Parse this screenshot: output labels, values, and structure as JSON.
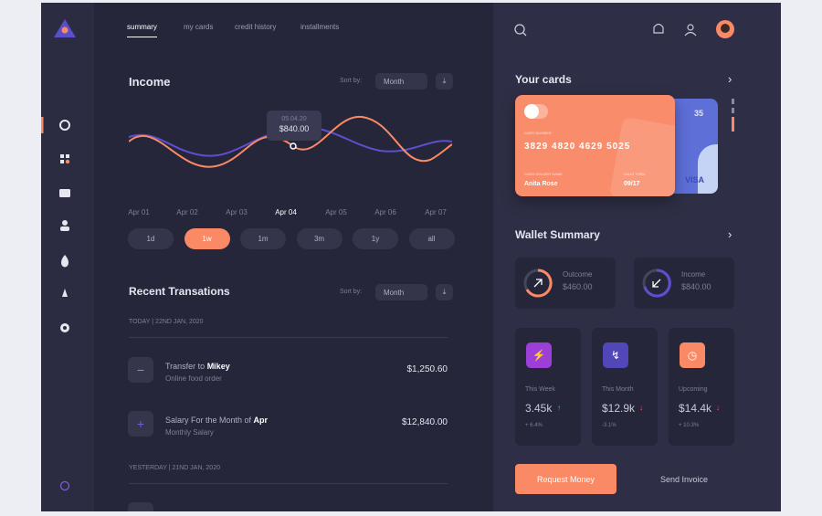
{
  "nav": {
    "tabs": [
      "summary",
      "my cards",
      "credit history",
      "installments"
    ],
    "active": 0
  },
  "income": {
    "title": "Income",
    "sort_label": "Sort by:",
    "sort_value": "Month",
    "tooltip": {
      "date": "05.04.20",
      "value": "$840.00"
    },
    "x_labels": [
      "Apr 01",
      "Apr 02",
      "Apr 03",
      "Apr 04",
      "Apr 05",
      "Apr 06",
      "Apr 07"
    ],
    "highlight": 3,
    "ranges": [
      "1d",
      "1w",
      "1m",
      "3m",
      "1y",
      "all"
    ],
    "active_range": 1
  },
  "transactions": {
    "title": "Recent Transations",
    "sort_label": "Sort by:",
    "sort_value": "Month",
    "groups": [
      {
        "date": "TODAY | 22ND JAN, 2020",
        "items": [
          {
            "prefix": "Transfer to ",
            "bold": "Mikey",
            "sub": "Online food order",
            "amount": "$1,250.60"
          },
          {
            "prefix": "Salary For the Month of ",
            "bold": "Apr",
            "sub": "Monthly Salary",
            "amount": "$12,840.00"
          }
        ]
      },
      {
        "date": "YESTERDAY | 21ND JAN, 2020"
      }
    ]
  },
  "cards": {
    "title": "Your cards",
    "card": {
      "number_label": "CARD NUMBER",
      "number": "3829 4820 4629 5025",
      "holder_label": "CARD HOLDER NAME",
      "holder": "Anita Rose",
      "valid_label": "VALID THRU",
      "valid": "09/17"
    },
    "back_number": "35",
    "back_brand": "VISA"
  },
  "wallet": {
    "title": "Wallet Summary",
    "outcome": {
      "label": "Outcome",
      "value": "$460.00"
    },
    "income": {
      "label": "Income",
      "value": "$840.00"
    },
    "stats": [
      {
        "label": "This Week",
        "value": "3.45k",
        "change": "+ 6.4%"
      },
      {
        "label": "This Month",
        "value": "$12.9k",
        "change": "-3.1%"
      },
      {
        "label": "Upcoming",
        "value": "$14.4k",
        "change": "+ 10.3%"
      }
    ]
  },
  "actions": [
    "Request Money",
    "Send Invoice"
  ]
}
